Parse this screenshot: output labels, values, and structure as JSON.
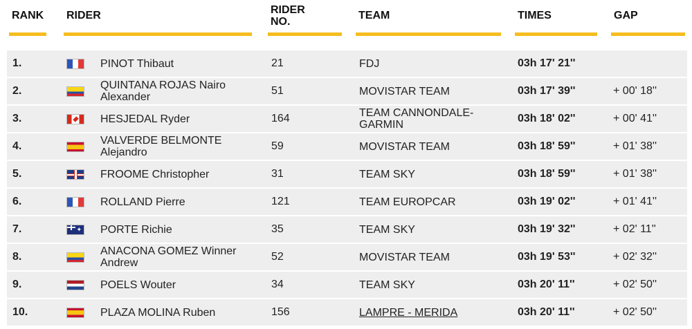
{
  "header": {
    "rank": "RANK",
    "rider": "RIDER",
    "rider_no": "RIDER\nNO.",
    "team": "TEAM",
    "times": "TIMES",
    "gap": "GAP"
  },
  "colors": {
    "accent": "#f5bd1f",
    "row_bg": "#eeeeee"
  },
  "rows": [
    {
      "rank": "1.",
      "flag": "france-flag-icon",
      "name": "PINOT Thibaut",
      "no": "21",
      "team": "FDJ",
      "time": "03h 17' 21''",
      "gap": ""
    },
    {
      "rank": "2.",
      "flag": "colombia-flag-icon",
      "name": "QUINTANA ROJAS Nairo Alexander",
      "no": "51",
      "team": "MOVISTAR TEAM",
      "time": "03h 17' 39''",
      "gap": "+ 00' 18''"
    },
    {
      "rank": "3.",
      "flag": "canada-flag-icon",
      "name": "HESJEDAL Ryder",
      "no": "164",
      "team": "TEAM CANNONDALE-GARMIN",
      "time": "03h 18' 02''",
      "gap": "+ 00' 41''"
    },
    {
      "rank": "4.",
      "flag": "spain-flag-icon",
      "name": "VALVERDE BELMONTE Alejandro",
      "no": "59",
      "team": "MOVISTAR TEAM",
      "time": "03h 18' 59''",
      "gap": "+ 01' 38''"
    },
    {
      "rank": "5.",
      "flag": "uk-flag-icon",
      "name": "FROOME Christopher",
      "no": "31",
      "team": "TEAM SKY",
      "time": "03h 18' 59''",
      "gap": "+ 01' 38''"
    },
    {
      "rank": "6.",
      "flag": "france-flag-icon",
      "name": "ROLLAND Pierre",
      "no": "121",
      "team": "TEAM EUROPCAR",
      "time": "03h 19' 02''",
      "gap": "+ 01' 41''"
    },
    {
      "rank": "7.",
      "flag": "australia-flag-icon",
      "name": "PORTE Richie",
      "no": "35",
      "team": "TEAM SKY",
      "time": "03h 19' 32''",
      "gap": "+ 02' 11''"
    },
    {
      "rank": "8.",
      "flag": "colombia-flag-icon",
      "name": "ANACONA GOMEZ Winner Andrew",
      "no": "52",
      "team": "MOVISTAR TEAM",
      "time": "03h 19' 53''",
      "gap": "+ 02' 32''"
    },
    {
      "rank": "9.",
      "flag": "netherlands-flag-icon",
      "name": "POELS Wouter",
      "no": "34",
      "team": "TEAM SKY",
      "time": "03h 20' 11''",
      "gap": "+ 02' 50''"
    },
    {
      "rank": "10.",
      "flag": "spain-flag-icon",
      "name": "PLAZA MOLINA Ruben",
      "no": "156",
      "team": "LAMPRE - MERIDA",
      "time": "03h 20' 11''",
      "gap": "+ 02' 50''"
    }
  ]
}
